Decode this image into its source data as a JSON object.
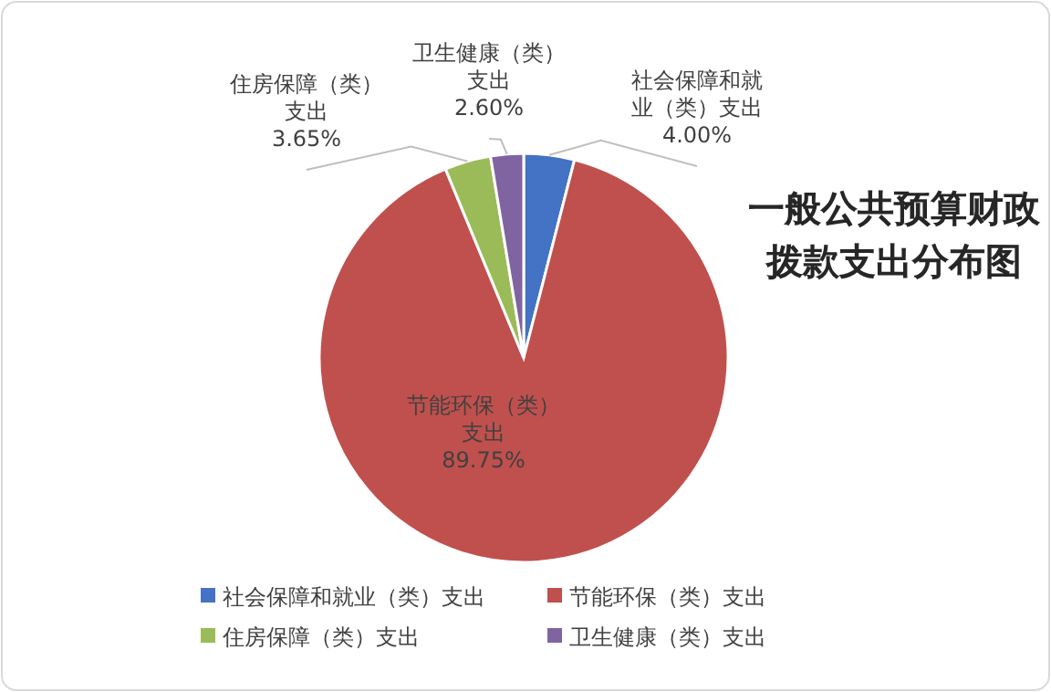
{
  "chart_data": {
    "type": "pie",
    "title": "一般公共预算财政拨款支出分布图",
    "categories": [
      "社会保障和就业（类）支出",
      "节能环保（类）支出",
      "住房保障（类）支出",
      "卫生健康（类）支出"
    ],
    "values": [
      4.0,
      89.75,
      3.65,
      2.6
    ],
    "colors": [
      "#4472c4",
      "#c0504d",
      "#9bbb59",
      "#8064a2"
    ],
    "value_labels": [
      "社会保障和就业（类）支出4.00%",
      "节能环保（类）支出89.75%",
      "住房保障（类）支出3.65%",
      "卫生健康（类）支出2.60%"
    ],
    "legend": "bottom"
  }
}
